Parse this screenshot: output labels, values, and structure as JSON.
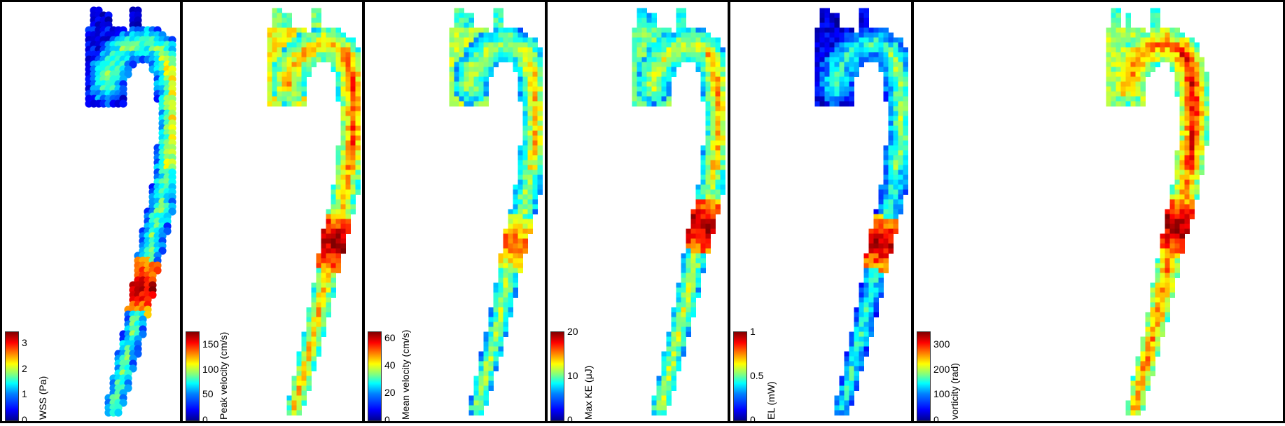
{
  "panels": [
    {
      "id": "wss",
      "label": "WSS (Pa)",
      "ticks": [
        "0",
        "1",
        "2",
        "3"
      ],
      "tick_fractions": [
        0.0,
        0.29,
        0.58,
        0.87
      ],
      "style": "smooth"
    },
    {
      "id": "peak-velocity",
      "label": "Peak velocity (cm/s)",
      "ticks": [
        "0",
        "50",
        "100",
        "150"
      ],
      "tick_fractions": [
        0.0,
        0.29,
        0.57,
        0.86
      ],
      "style": "pixel"
    },
    {
      "id": "mean-velocity",
      "label": "Mean velocity (cm/s)",
      "ticks": [
        "0",
        "20",
        "40",
        "60"
      ],
      "tick_fractions": [
        0.0,
        0.31,
        0.62,
        0.93
      ],
      "style": "pixel"
    },
    {
      "id": "max-ke",
      "label": "Max KE (μJ)",
      "ticks": [
        "0",
        "10",
        "20"
      ],
      "tick_fractions": [
        0.0,
        0.5,
        1.0
      ],
      "style": "pixel"
    },
    {
      "id": "el",
      "label": "EL (mW)",
      "ticks": [
        "0",
        "0.5",
        "1"
      ],
      "tick_fractions": [
        0.0,
        0.5,
        1.0
      ],
      "style": "pixel"
    },
    {
      "id": "vorticity",
      "label": "vorticity (rad)",
      "ticks": [
        "0",
        "100",
        "200",
        "300"
      ],
      "tick_fractions": [
        0.0,
        0.29,
        0.57,
        0.86
      ],
      "style": "pixel"
    }
  ],
  "colors": {
    "colormap": [
      "#00008f",
      "#0000ff",
      "#0080ff",
      "#00ffff",
      "#80ff80",
      "#ffff00",
      "#ff8000",
      "#ff0000",
      "#800000"
    ],
    "border": "#000000"
  }
}
